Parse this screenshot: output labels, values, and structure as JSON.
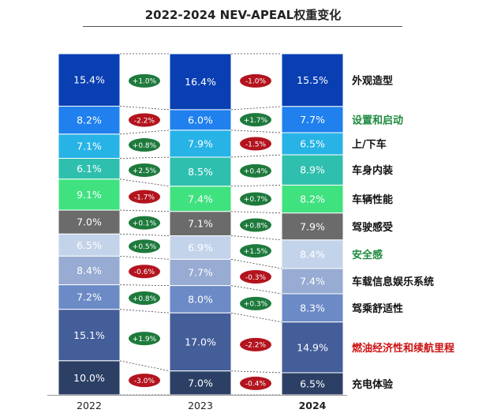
{
  "title": "2022-2024 NEV-APEAL权重变化",
  "chart_data": {
    "type": "bar",
    "stacked": true,
    "years": [
      "2022",
      "2023",
      "2024"
    ],
    "highlight_year": "2024",
    "series": [
      {
        "name": "外观造型",
        "color": "#0a3fb3",
        "label_color": "#111111",
        "values": [
          15.4,
          16.4,
          15.5
        ],
        "changes": [
          "+1.0%",
          "-1.0%"
        ]
      },
      {
        "name": "设置和启动",
        "color": "#1f80ee",
        "label_color": "#1d8a3e",
        "values": [
          8.2,
          6.0,
          7.7
        ],
        "changes": [
          "-2.2%",
          "+1.7%"
        ]
      },
      {
        "name": "上/下车",
        "color": "#27b3e6",
        "label_color": "#111111",
        "values": [
          7.1,
          7.9,
          6.5
        ],
        "changes": [
          "+0.8%",
          "-1.5%"
        ]
      },
      {
        "name": "车身内装",
        "color": "#2fbfae",
        "label_color": "#111111",
        "values": [
          6.1,
          8.5,
          8.9
        ],
        "changes": [
          "+2.5%",
          "+0.4%"
        ]
      },
      {
        "name": "车辆性能",
        "color": "#3fe27f",
        "label_color": "#111111",
        "values": [
          9.1,
          7.4,
          8.2
        ],
        "changes": [
          "-1.7%",
          "+0.7%"
        ]
      },
      {
        "name": "驾驶感受",
        "color": "#6b6b6b",
        "label_color": "#111111",
        "values": [
          7.0,
          7.1,
          7.9
        ],
        "changes": [
          "+0.1%",
          "+0.8%"
        ]
      },
      {
        "name": "安全感",
        "color": "#c3d3ea",
        "label_color": "#1d8a3e",
        "values": [
          6.5,
          6.9,
          8.4
        ],
        "changes": [
          "+0.5%",
          "+1.5%"
        ]
      },
      {
        "name": "车载信息娱乐系统",
        "color": "#97abd3",
        "label_color": "#111111",
        "values": [
          8.4,
          7.7,
          7.4
        ],
        "changes": [
          "-0.6%",
          "-0.3%"
        ]
      },
      {
        "name": "驾乘舒适性",
        "color": "#6c8ac6",
        "label_color": "#111111",
        "values": [
          7.2,
          8.0,
          8.3
        ],
        "changes": [
          "+0.8%",
          "+0.3%"
        ]
      },
      {
        "name": "燃油经济性和续航里程",
        "color": "#445e9a",
        "label_color": "#cc1111",
        "values": [
          15.1,
          17.0,
          14.9
        ],
        "changes": [
          "+1.9%",
          "-2.2%"
        ]
      },
      {
        "name": "充电体验",
        "color": "#2c4066",
        "label_color": "#111111",
        "values": [
          10.0,
          7.0,
          6.5
        ],
        "changes": [
          "-3.0%",
          "-0.4%"
        ]
      }
    ],
    "badge_colors": {
      "positive": "#1e7a3c",
      "negative": "#b3141e"
    }
  }
}
